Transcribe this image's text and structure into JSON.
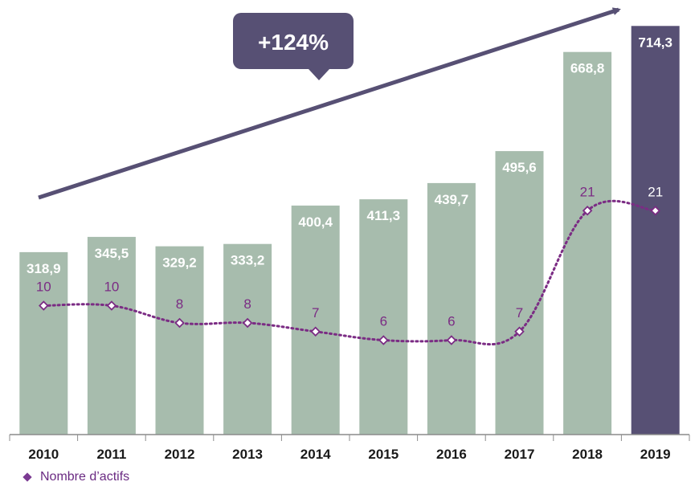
{
  "callout": {
    "text": "+124%"
  },
  "legend": {
    "label": "Nombre d’actifs"
  },
  "colors": {
    "bar": "#a7bcad",
    "bar_highlight": "#575074",
    "line": "#7b2c84",
    "arrow": "#575074",
    "callout_bg": "#575074",
    "count_label": "#7b2c84",
    "count_label_highlight": "#ffffff"
  },
  "chart_data": {
    "type": "bar",
    "title": "",
    "xlabel": "",
    "ylabel": "",
    "ylim": [
      0,
      740
    ],
    "categories": [
      "2010",
      "2011",
      "2012",
      "2013",
      "2014",
      "2015",
      "2016",
      "2017",
      "2018",
      "2019"
    ],
    "series": [
      {
        "type": "bar",
        "values": [
          318.9,
          345.5,
          329.2,
          333.2,
          400.4,
          411.3,
          439.7,
          495.6,
          668.8,
          714.3
        ],
        "labels": [
          "318,9",
          "345,5",
          "329,2",
          "333,2",
          "400,4",
          "411,3",
          "439,7",
          "495,6",
          "668,8",
          "714,3"
        ],
        "highlight_index": 9
      },
      {
        "type": "line",
        "name": "Nombre d’actifs",
        "values": [
          10,
          10,
          8,
          8,
          7,
          6,
          6,
          7,
          21,
          21
        ],
        "labels": [
          "10",
          "10",
          "8",
          "8",
          "7",
          "6",
          "6",
          "7",
          "21",
          "21"
        ]
      }
    ],
    "legend": "bottom-left"
  }
}
